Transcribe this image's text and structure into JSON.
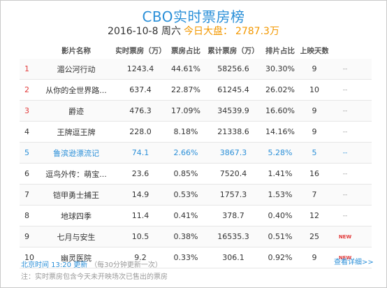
{
  "title": "CBO实时票房榜",
  "subtitle": {
    "date": "2016-10-8 周六",
    "total_label": "今日大盘：",
    "total_value": "2787.3万"
  },
  "columns": [
    "影片名称",
    "实时票房（万）",
    "票房占比",
    "累计票房（万）",
    "排片占比",
    "上映天数"
  ],
  "rows": [
    {
      "rank": "1",
      "name": "湄公河行动",
      "box": "1243.4",
      "share": "44.61%",
      "cum": "58256.6",
      "sched": "30.30%",
      "days": "9",
      "flag": "--"
    },
    {
      "rank": "2",
      "name": "从你的全世界路...",
      "box": "637.4",
      "share": "22.87%",
      "cum": "61245.4",
      "sched": "26.02%",
      "days": "10",
      "flag": "--"
    },
    {
      "rank": "3",
      "name": "爵迹",
      "box": "476.3",
      "share": "17.09%",
      "cum": "34539.9",
      "sched": "16.60%",
      "days": "9",
      "flag": "--"
    },
    {
      "rank": "4",
      "name": "王牌逗王牌",
      "box": "228.0",
      "share": "8.18%",
      "cum": "21338.6",
      "sched": "14.16%",
      "days": "9",
      "flag": "--"
    },
    {
      "rank": "5",
      "name": "鲁滨逊漂流记",
      "box": "74.1",
      "share": "2.66%",
      "cum": "3867.3",
      "sched": "5.28%",
      "days": "5",
      "flag": "--"
    },
    {
      "rank": "6",
      "name": "逗鸟外传：萌宝...",
      "box": "23.6",
      "share": "0.85%",
      "cum": "7520.4",
      "sched": "1.41%",
      "days": "16",
      "flag": "--"
    },
    {
      "rank": "7",
      "name": "铠甲勇士捕王",
      "box": "14.9",
      "share": "0.53%",
      "cum": "1757.3",
      "sched": "1.53%",
      "days": "7",
      "flag": "--"
    },
    {
      "rank": "8",
      "name": "地球四季",
      "box": "11.4",
      "share": "0.41%",
      "cum": "378.7",
      "sched": "0.40%",
      "days": "12",
      "flag": "--"
    },
    {
      "rank": "9",
      "name": "七月与安生",
      "box": "10.5",
      "share": "0.38%",
      "cum": "16535.3",
      "sched": "0.51%",
      "days": "25",
      "flag": "NEW"
    },
    {
      "rank": "10",
      "name": "幽灵医院",
      "box": "9.2",
      "share": "0.33%",
      "cum": "306.1",
      "sched": "0.92%",
      "days": "9",
      "flag": "NEW"
    }
  ],
  "footer": {
    "update": "北京时间 13:20 更新",
    "update_note": "（每30分钟更新一次）",
    "notice": "注：实时票房包含今天未开映场次已售出的票房",
    "more_link": "查看详细>>"
  },
  "colors": {
    "accent": "#2a8fd8",
    "top_rank": "#e23b3b",
    "total": "#f39800",
    "new_flag": "#e23b3b"
  }
}
